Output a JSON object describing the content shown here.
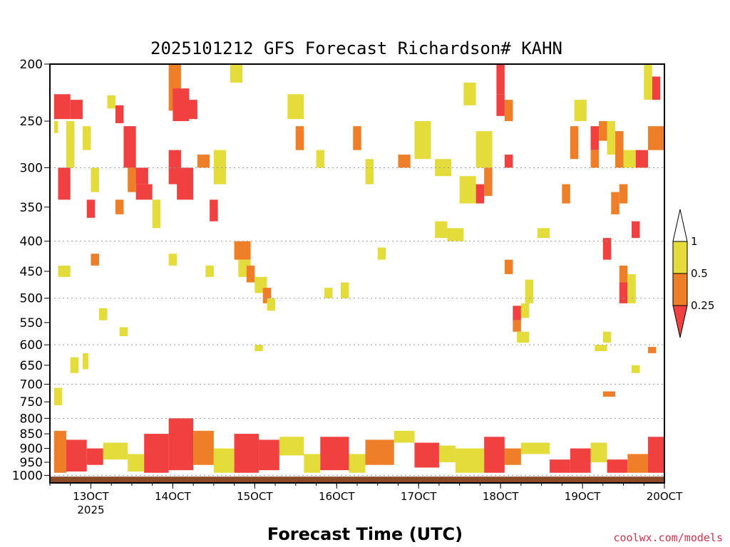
{
  "chart_data": {
    "type": "heatmap",
    "title": "2025101212 GFS Forecast Richardson# KAHN",
    "xlabel": "Forecast Time (UTC)",
    "ylabel": "",
    "credit": "coolwx.com/models",
    "x_tick_labels": [
      {
        "label": "13OCT",
        "day": 13,
        "year": "2025"
      },
      {
        "label": "14OCT",
        "day": 14
      },
      {
        "label": "15OCT",
        "day": 15
      },
      {
        "label": "16OCT",
        "day": 16
      },
      {
        "label": "17OCT",
        "day": 17
      },
      {
        "label": "18OCT",
        "day": 18
      },
      {
        "label": "19OCT",
        "day": 19
      },
      {
        "label": "20OCT",
        "day": 20
      }
    ],
    "xlim": [
      12.5,
      20.0
    ],
    "y_ticks": [
      200,
      250,
      300,
      350,
      400,
      450,
      500,
      550,
      600,
      650,
      700,
      750,
      800,
      850,
      900,
      950,
      1000
    ],
    "ylim": [
      200,
      1030
    ],
    "y_scale": "log-pressure",
    "grid": "dotted horizontal at 300, 400, 500, 600, 700, 800, 1000 hPa",
    "surface_fill_top": 1005,
    "colors": {
      "le_0.25": "#f04040",
      "0.25_0.5": "#ee7f28",
      "0.5_1": "#e4dc3a",
      "ground": "#8b4a28"
    },
    "colorbar": [
      {
        "label": "1",
        "value": 1
      },
      {
        "label": "0.5",
        "value": 0.5
      },
      {
        "label": "0.25",
        "value": 0.25
      }
    ],
    "cells": [
      {
        "t0": 12.55,
        "t1": 12.75,
        "p0": 225,
        "p1": 248,
        "c": "r"
      },
      {
        "t0": 12.75,
        "t1": 12.9,
        "p0": 230,
        "p1": 248,
        "c": "r"
      },
      {
        "t0": 12.55,
        "t1": 12.6,
        "p0": 250,
        "p1": 262,
        "c": "y"
      },
      {
        "t0": 12.6,
        "t1": 12.75,
        "p0": 300,
        "p1": 340,
        "c": "r"
      },
      {
        "t0": 12.7,
        "t1": 12.8,
        "p0": 250,
        "p1": 300,
        "c": "y"
      },
      {
        "t0": 12.9,
        "t1": 13.0,
        "p0": 255,
        "p1": 280,
        "c": "y"
      },
      {
        "t0": 13.0,
        "t1": 13.1,
        "p0": 300,
        "p1": 330,
        "c": "y"
      },
      {
        "t0": 12.95,
        "t1": 13.05,
        "p0": 340,
        "p1": 365,
        "c": "r"
      },
      {
        "t0": 13.2,
        "t1": 13.3,
        "p0": 226,
        "p1": 238,
        "c": "y"
      },
      {
        "t0": 13.3,
        "t1": 13.4,
        "p0": 235,
        "p1": 252,
        "c": "r"
      },
      {
        "t0": 13.4,
        "t1": 13.55,
        "p0": 255,
        "p1": 300,
        "c": "r"
      },
      {
        "t0": 13.5,
        "t1": 13.7,
        "p0": 300,
        "p1": 320,
        "c": "r"
      },
      {
        "t0": 13.55,
        "t1": 13.75,
        "p0": 320,
        "p1": 340,
        "c": "r"
      },
      {
        "t0": 13.45,
        "t1": 13.55,
        "p0": 300,
        "p1": 330,
        "c": "o"
      },
      {
        "t0": 13.75,
        "t1": 13.85,
        "p0": 340,
        "p1": 380,
        "c": "y"
      },
      {
        "t0": 13.3,
        "t1": 13.4,
        "p0": 340,
        "p1": 360,
        "c": "o"
      },
      {
        "t0": 13.95,
        "t1": 14.1,
        "p0": 200,
        "p1": 240,
        "c": "o"
      },
      {
        "t0": 14.0,
        "t1": 14.2,
        "p0": 220,
        "p1": 250,
        "c": "r"
      },
      {
        "t0": 14.1,
        "t1": 14.3,
        "p0": 230,
        "p1": 248,
        "c": "r"
      },
      {
        "t0": 13.95,
        "t1": 14.1,
        "p0": 280,
        "p1": 320,
        "c": "r"
      },
      {
        "t0": 14.05,
        "t1": 14.25,
        "p0": 300,
        "p1": 340,
        "c": "r"
      },
      {
        "t0": 14.3,
        "t1": 14.45,
        "p0": 285,
        "p1": 300,
        "c": "o"
      },
      {
        "t0": 14.45,
        "t1": 14.55,
        "p0": 340,
        "p1": 370,
        "c": "r"
      },
      {
        "t0": 14.5,
        "t1": 14.65,
        "p0": 280,
        "p1": 320,
        "c": "y"
      },
      {
        "t0": 14.7,
        "t1": 14.85,
        "p0": 200,
        "p1": 215,
        "c": "y"
      },
      {
        "t0": 14.75,
        "t1": 14.95,
        "p0": 400,
        "p1": 430,
        "c": "o"
      },
      {
        "t0": 14.8,
        "t1": 14.95,
        "p0": 430,
        "p1": 460,
        "c": "y"
      },
      {
        "t0": 14.9,
        "t1": 15.0,
        "p0": 440,
        "p1": 470,
        "c": "o"
      },
      {
        "t0": 15.0,
        "t1": 15.15,
        "p0": 460,
        "p1": 490,
        "c": "y"
      },
      {
        "t0": 15.1,
        "t1": 15.2,
        "p0": 480,
        "p1": 510,
        "c": "o"
      },
      {
        "t0": 15.15,
        "t1": 15.25,
        "p0": 500,
        "p1": 525,
        "c": "y"
      },
      {
        "t0": 15.0,
        "t1": 15.1,
        "p0": 600,
        "p1": 615,
        "c": "y"
      },
      {
        "t0": 15.4,
        "t1": 15.6,
        "p0": 225,
        "p1": 248,
        "c": "y"
      },
      {
        "t0": 15.5,
        "t1": 15.6,
        "p0": 255,
        "p1": 280,
        "c": "o"
      },
      {
        "t0": 15.75,
        "t1": 15.85,
        "p0": 280,
        "p1": 300,
        "c": "y"
      },
      {
        "t0": 16.2,
        "t1": 16.3,
        "p0": 255,
        "p1": 280,
        "c": "o"
      },
      {
        "t0": 16.35,
        "t1": 16.45,
        "p0": 290,
        "p1": 320,
        "c": "y"
      },
      {
        "t0": 16.75,
        "t1": 16.9,
        "p0": 285,
        "p1": 300,
        "c": "o"
      },
      {
        "t0": 16.95,
        "t1": 17.15,
        "p0": 250,
        "p1": 290,
        "c": "y"
      },
      {
        "t0": 17.2,
        "t1": 17.4,
        "p0": 290,
        "p1": 310,
        "c": "y"
      },
      {
        "t0": 17.55,
        "t1": 17.7,
        "p0": 215,
        "p1": 235,
        "c": "y"
      },
      {
        "t0": 17.5,
        "t1": 17.7,
        "p0": 310,
        "p1": 345,
        "c": "y"
      },
      {
        "t0": 17.7,
        "t1": 17.9,
        "p0": 260,
        "p1": 300,
        "c": "y"
      },
      {
        "t0": 17.8,
        "t1": 17.9,
        "p0": 300,
        "p1": 335,
        "c": "o"
      },
      {
        "t0": 17.7,
        "t1": 17.8,
        "p0": 320,
        "p1": 345,
        "c": "r"
      },
      {
        "t0": 17.95,
        "t1": 18.05,
        "p0": 200,
        "p1": 225,
        "c": "r"
      },
      {
        "t0": 18.05,
        "t1": 18.15,
        "p0": 230,
        "p1": 250,
        "c": "o"
      },
      {
        "t0": 17.95,
        "t1": 18.05,
        "p0": 225,
        "p1": 245,
        "c": "r"
      },
      {
        "t0": 18.05,
        "t1": 18.15,
        "p0": 285,
        "p1": 300,
        "c": "r"
      },
      {
        "t0": 18.05,
        "t1": 18.15,
        "p0": 430,
        "p1": 455,
        "c": "o"
      },
      {
        "t0": 18.15,
        "t1": 18.25,
        "p0": 515,
        "p1": 545,
        "c": "r"
      },
      {
        "t0": 18.15,
        "t1": 18.25,
        "p0": 545,
        "p1": 570,
        "c": "o"
      },
      {
        "t0": 18.2,
        "t1": 18.35,
        "p0": 570,
        "p1": 595,
        "c": "y"
      },
      {
        "t0": 18.3,
        "t1": 18.4,
        "p0": 465,
        "p1": 510,
        "c": "y"
      },
      {
        "t0": 18.25,
        "t1": 18.35,
        "p0": 510,
        "p1": 540,
        "c": "y"
      },
      {
        "t0": 18.9,
        "t1": 19.05,
        "p0": 230,
        "p1": 250,
        "c": "y"
      },
      {
        "t0": 18.85,
        "t1": 18.95,
        "p0": 255,
        "p1": 290,
        "c": "o"
      },
      {
        "t0": 18.75,
        "t1": 18.85,
        "p0": 320,
        "p1": 345,
        "c": "o"
      },
      {
        "t0": 19.1,
        "t1": 19.2,
        "p0": 255,
        "p1": 280,
        "c": "r"
      },
      {
        "t0": 19.2,
        "t1": 19.3,
        "p0": 250,
        "p1": 270,
        "c": "o"
      },
      {
        "t0": 19.1,
        "t1": 19.2,
        "p0": 280,
        "p1": 300,
        "c": "o"
      },
      {
        "t0": 19.3,
        "t1": 19.4,
        "p0": 250,
        "p1": 285,
        "c": "y"
      },
      {
        "t0": 19.4,
        "t1": 19.5,
        "p0": 260,
        "p1": 300,
        "c": "o"
      },
      {
        "t0": 19.5,
        "t1": 19.65,
        "p0": 280,
        "p1": 300,
        "c": "y"
      },
      {
        "t0": 19.65,
        "t1": 19.8,
        "p0": 280,
        "p1": 300,
        "c": "r"
      },
      {
        "t0": 19.8,
        "t1": 20.0,
        "p0": 255,
        "p1": 280,
        "c": "o"
      },
      {
        "t0": 19.85,
        "t1": 19.95,
        "p0": 210,
        "p1": 230,
        "c": "r"
      },
      {
        "t0": 19.75,
        "t1": 19.85,
        "p0": 200,
        "p1": 230,
        "c": "y"
      },
      {
        "t0": 19.35,
        "t1": 19.45,
        "p0": 330,
        "p1": 360,
        "c": "o"
      },
      {
        "t0": 19.45,
        "t1": 19.55,
        "p0": 320,
        "p1": 345,
        "c": "o"
      },
      {
        "t0": 19.6,
        "t1": 19.7,
        "p0": 370,
        "p1": 395,
        "c": "r"
      },
      {
        "t0": 19.25,
        "t1": 19.35,
        "p0": 395,
        "p1": 430,
        "c": "r"
      },
      {
        "t0": 19.45,
        "t1": 19.55,
        "p0": 440,
        "p1": 470,
        "c": "o"
      },
      {
        "t0": 19.45,
        "t1": 19.55,
        "p0": 470,
        "p1": 510,
        "c": "r"
      },
      {
        "t0": 19.55,
        "t1": 19.65,
        "p0": 455,
        "p1": 510,
        "c": "y"
      },
      {
        "t0": 19.25,
        "t1": 19.4,
        "p0": 720,
        "p1": 735,
        "c": "o"
      },
      {
        "t0": 19.8,
        "t1": 19.9,
        "p0": 605,
        "p1": 620,
        "c": "o"
      },
      {
        "t0": 19.6,
        "t1": 19.7,
        "p0": 650,
        "p1": 670,
        "c": "y"
      },
      {
        "t0": 19.25,
        "t1": 19.35,
        "p0": 570,
        "p1": 595,
        "c": "y"
      },
      {
        "t0": 19.15,
        "t1": 19.3,
        "p0": 600,
        "p1": 615,
        "c": "y"
      },
      {
        "t0": 12.9,
        "t1": 12.97,
        "p0": 620,
        "p1": 660,
        "c": "y"
      },
      {
        "t0": 12.55,
        "t1": 12.65,
        "p0": 710,
        "p1": 760,
        "c": "y"
      },
      {
        "t0": 12.75,
        "t1": 12.85,
        "p0": 630,
        "p1": 670,
        "c": "y"
      },
      {
        "t0": 13.35,
        "t1": 13.45,
        "p0": 560,
        "p1": 580,
        "c": "y"
      },
      {
        "t0": 13.1,
        "t1": 13.2,
        "p0": 520,
        "p1": 545,
        "c": "y"
      },
      {
        "t0": 16.05,
        "t1": 16.15,
        "p0": 470,
        "p1": 500,
        "c": "y"
      },
      {
        "t0": 15.85,
        "t1": 15.95,
        "p0": 480,
        "p1": 500,
        "c": "y"
      },
      {
        "t0": 14.4,
        "t1": 14.5,
        "p0": 440,
        "p1": 460,
        "c": "y"
      },
      {
        "t0": 13.95,
        "t1": 14.05,
        "p0": 420,
        "p1": 440,
        "c": "y"
      },
      {
        "t0": 13.0,
        "t1": 13.1,
        "p0": 420,
        "p1": 440,
        "c": "o"
      },
      {
        "t0": 12.6,
        "t1": 12.75,
        "p0": 440,
        "p1": 460,
        "c": "y"
      },
      {
        "t0": 16.5,
        "t1": 16.6,
        "p0": 410,
        "p1": 430,
        "c": "y"
      },
      {
        "t0": 18.45,
        "t1": 18.6,
        "p0": 380,
        "p1": 395,
        "c": "y"
      },
      {
        "t0": 17.2,
        "t1": 17.35,
        "p0": 370,
        "p1": 395,
        "c": "y"
      },
      {
        "t0": 17.35,
        "t1": 17.55,
        "p0": 380,
        "p1": 400,
        "c": "y"
      },
      {
        "t0": 12.5,
        "t1": 20.0,
        "p0": 795,
        "p1": 1000,
        "c": "band"
      }
    ],
    "bands": [
      {
        "t0": 12.55,
        "t1": 12.7,
        "p0": 840,
        "p1": 990,
        "c": "o"
      },
      {
        "t0": 12.7,
        "t1": 12.95,
        "p0": 870,
        "p1": 985,
        "c": "r"
      },
      {
        "t0": 12.95,
        "t1": 13.15,
        "p0": 900,
        "p1": 960,
        "c": "r"
      },
      {
        "t0": 13.15,
        "t1": 13.45,
        "p0": 880,
        "p1": 940,
        "c": "y"
      },
      {
        "t0": 13.45,
        "t1": 13.65,
        "p0": 920,
        "p1": 985,
        "c": "y"
      },
      {
        "t0": 13.65,
        "t1": 13.95,
        "p0": 850,
        "p1": 990,
        "c": "r"
      },
      {
        "t0": 13.95,
        "t1": 14.25,
        "p0": 800,
        "p1": 980,
        "c": "r"
      },
      {
        "t0": 14.25,
        "t1": 14.5,
        "p0": 840,
        "p1": 960,
        "c": "o"
      },
      {
        "t0": 14.5,
        "t1": 14.75,
        "p0": 900,
        "p1": 990,
        "c": "y"
      },
      {
        "t0": 14.75,
        "t1": 15.05,
        "p0": 850,
        "p1": 990,
        "c": "r"
      },
      {
        "t0": 15.05,
        "t1": 15.3,
        "p0": 870,
        "p1": 980,
        "c": "r"
      },
      {
        "t0": 15.3,
        "t1": 15.6,
        "p0": 860,
        "p1": 925,
        "c": "y"
      },
      {
        "t0": 15.6,
        "t1": 15.8,
        "p0": 920,
        "p1": 990,
        "c": "y"
      },
      {
        "t0": 15.8,
        "t1": 16.15,
        "p0": 860,
        "p1": 980,
        "c": "r"
      },
      {
        "t0": 16.15,
        "t1": 16.35,
        "p0": 920,
        "p1": 990,
        "c": "y"
      },
      {
        "t0": 16.35,
        "t1": 16.7,
        "p0": 870,
        "p1": 960,
        "c": "o"
      },
      {
        "t0": 16.7,
        "t1": 16.95,
        "p0": 840,
        "p1": 880,
        "c": "y"
      },
      {
        "t0": 16.95,
        "t1": 17.25,
        "p0": 880,
        "p1": 970,
        "c": "r"
      },
      {
        "t0": 17.25,
        "t1": 17.45,
        "p0": 890,
        "p1": 950,
        "c": "y"
      },
      {
        "t0": 17.45,
        "t1": 17.8,
        "p0": 900,
        "p1": 990,
        "c": "y"
      },
      {
        "t0": 17.8,
        "t1": 18.05,
        "p0": 860,
        "p1": 990,
        "c": "r"
      },
      {
        "t0": 18.05,
        "t1": 18.25,
        "p0": 900,
        "p1": 960,
        "c": "o"
      },
      {
        "t0": 18.25,
        "t1": 18.6,
        "p0": 880,
        "p1": 920,
        "c": "y"
      },
      {
        "t0": 18.6,
        "t1": 18.85,
        "p0": 940,
        "p1": 990,
        "c": "r"
      },
      {
        "t0": 18.85,
        "t1": 19.1,
        "p0": 900,
        "p1": 990,
        "c": "r"
      },
      {
        "t0": 19.1,
        "t1": 19.3,
        "p0": 880,
        "p1": 950,
        "c": "y"
      },
      {
        "t0": 19.3,
        "t1": 19.55,
        "p0": 940,
        "p1": 990,
        "c": "r"
      },
      {
        "t0": 19.55,
        "t1": 19.8,
        "p0": 920,
        "p1": 990,
        "c": "o"
      },
      {
        "t0": 19.8,
        "t1": 20.0,
        "p0": 860,
        "p1": 990,
        "c": "r"
      }
    ]
  }
}
